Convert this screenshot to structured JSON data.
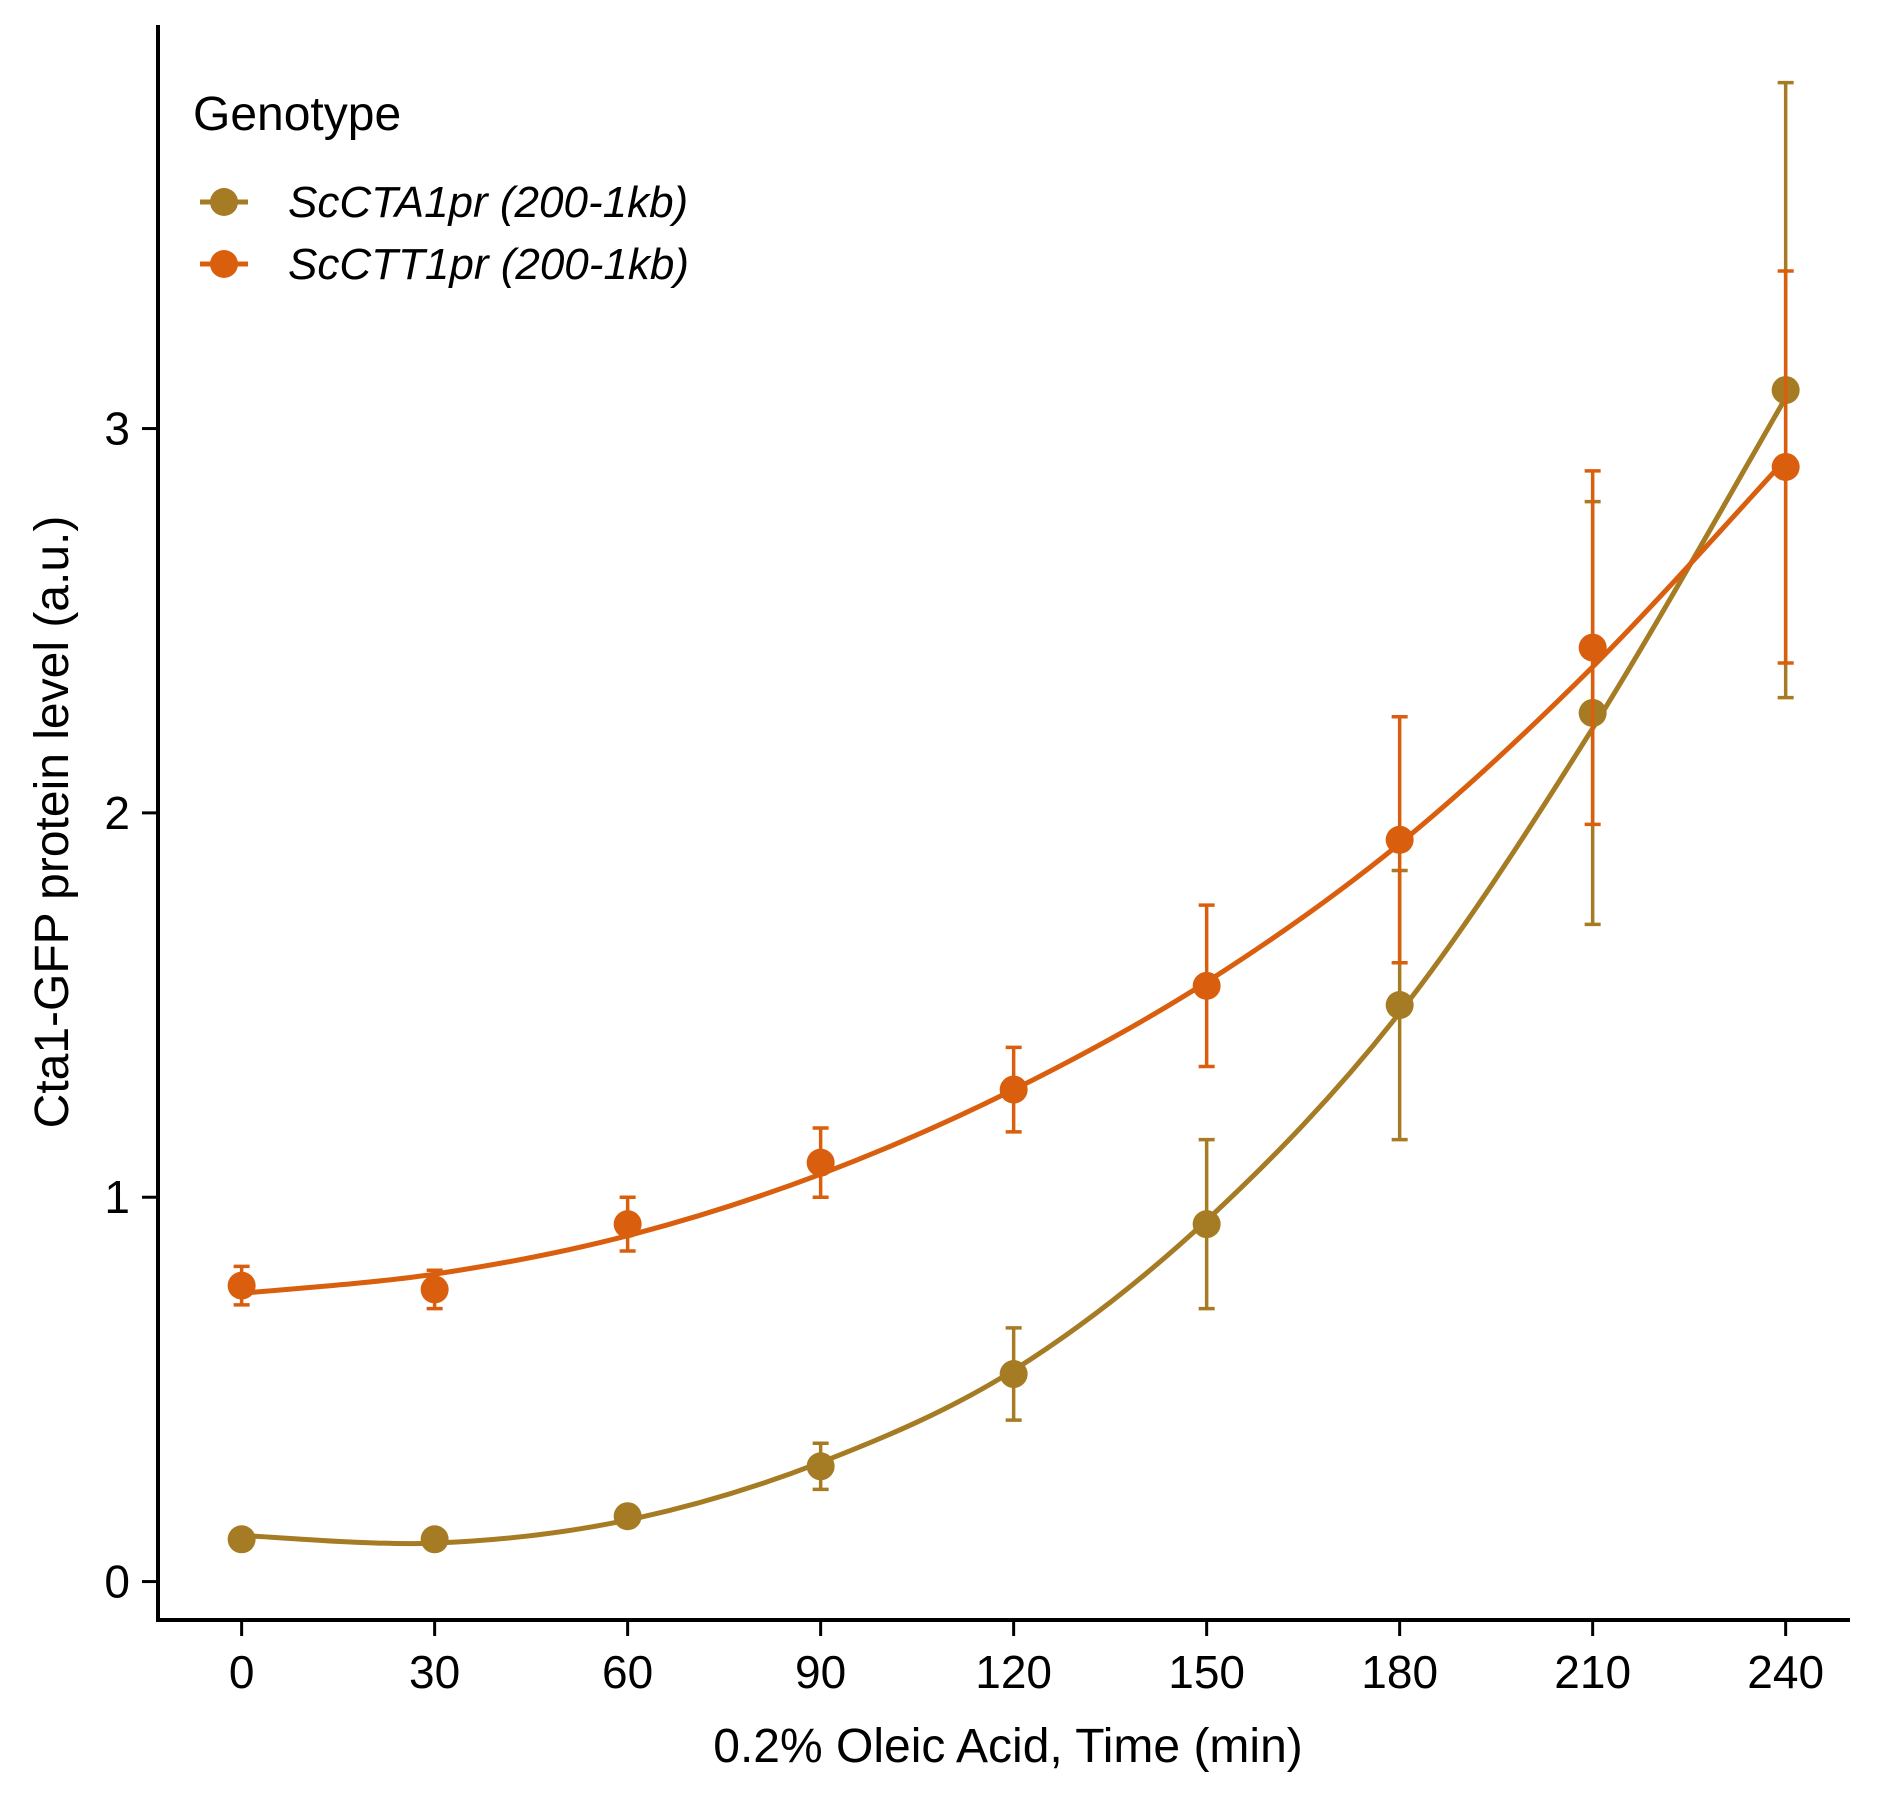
{
  "chart_data": {
    "type": "line",
    "xlabel": "0.2% Oleic Acid, Time (min)",
    "ylabel": "Cta1-GFP protein level (a.u.)",
    "x": [
      0,
      30,
      60,
      90,
      120,
      150,
      180,
      210,
      240
    ],
    "x_ticks": [
      "0",
      "30",
      "60",
      "90",
      "120",
      "150",
      "180",
      "210",
      "240"
    ],
    "y_ticks": [
      "0",
      "1",
      "2",
      "3"
    ],
    "xlim": [
      -13,
      250
    ],
    "ylim": [
      -0.1,
      4.05
    ],
    "grid": false,
    "legend": {
      "title": "Genotype",
      "position": "top-left"
    },
    "series": [
      {
        "name": "ScCTA1pr (200-1kb)",
        "color": "#A57B23",
        "values": [
          0.11,
          0.11,
          0.17,
          0.3,
          0.54,
          0.93,
          1.5,
          2.26,
          3.1
        ],
        "error": [
          0.02,
          0.02,
          0.02,
          0.06,
          0.12,
          0.22,
          0.35,
          0.55,
          0.8
        ],
        "fit": [
          0.12,
          0.1,
          0.16,
          0.31,
          0.55,
          0.94,
          1.48,
          2.22,
          3.08
        ]
      },
      {
        "name": "ScCTT1pr (200-1kb)",
        "color": "#D95F0E",
        "values": [
          0.77,
          0.76,
          0.93,
          1.09,
          1.28,
          1.55,
          1.93,
          2.43,
          2.9
        ],
        "error": [
          0.05,
          0.05,
          0.07,
          0.09,
          0.11,
          0.21,
          0.32,
          0.46,
          0.51
        ],
        "fit": [
          0.75,
          0.8,
          0.9,
          1.06,
          1.28,
          1.56,
          1.92,
          2.38,
          2.92
        ]
      }
    ]
  }
}
